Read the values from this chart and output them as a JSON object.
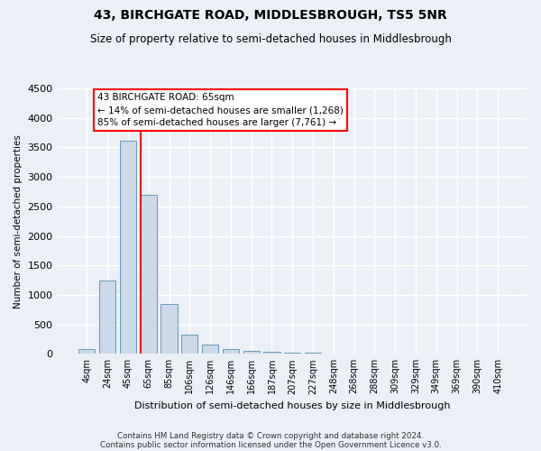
{
  "title": "43, BIRCHGATE ROAD, MIDDLESBROUGH, TS5 5NR",
  "subtitle": "Size of property relative to semi-detached houses in Middlesbrough",
  "xlabel": "Distribution of semi-detached houses by size in Middlesbrough",
  "ylabel": "Number of semi-detached properties",
  "footnote1": "Contains HM Land Registry data © Crown copyright and database right 2024.",
  "footnote2": "Contains public sector information licensed under the Open Government Licence v3.0.",
  "annotation_line1": "43 BIRCHGATE ROAD: 65sqm",
  "annotation_line2": "← 14% of semi-detached houses are smaller (1,268)",
  "annotation_line3": "85% of semi-detached houses are larger (7,761) →",
  "bar_labels": [
    "4sqm",
    "24sqm",
    "45sqm",
    "65sqm",
    "85sqm",
    "106sqm",
    "126sqm",
    "146sqm",
    "166sqm",
    "187sqm",
    "207sqm",
    "227sqm",
    "248sqm",
    "268sqm",
    "288sqm",
    "309sqm",
    "329sqm",
    "349sqm",
    "369sqm",
    "390sqm",
    "410sqm"
  ],
  "bar_values": [
    85,
    1250,
    3620,
    2700,
    850,
    330,
    150,
    80,
    55,
    30,
    20,
    15,
    5,
    3,
    3,
    2,
    1,
    1,
    0,
    0,
    0
  ],
  "bar_color": "#ccd9e8",
  "bar_edge_color": "#6699bb",
  "red_line_index": 3,
  "ylim": [
    0,
    4500
  ],
  "yticks": [
    0,
    500,
    1000,
    1500,
    2000,
    2500,
    3000,
    3500,
    4000,
    4500
  ],
  "bg_color": "#eaf0f6",
  "grid_color": "#ffffff",
  "title_fontsize": 10,
  "subtitle_fontsize": 8.5
}
